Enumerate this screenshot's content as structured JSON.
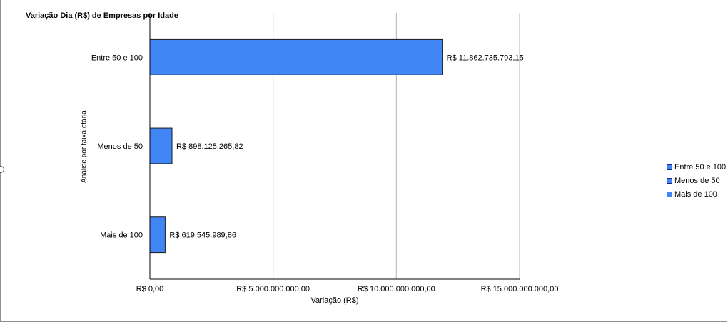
{
  "chart_data": {
    "type": "bar",
    "orientation": "horizontal",
    "title": "Variação Dia (R$) de Empresas por Idade",
    "xlabel": "Variação (R$)",
    "ylabel": "Análise por faixa etária",
    "categories": [
      "Entre 50 e 100",
      "Menos de 50",
      "Mais de 100"
    ],
    "values": [
      11862735793.15,
      898125265.82,
      619545989.86
    ],
    "data_labels": [
      "R$ 11.862.735.793,15",
      "R$ 898.125.265,82",
      "R$ 619.545.989,86"
    ],
    "xlim": [
      0,
      15000000000
    ],
    "x_ticks": [
      0,
      5000000000,
      10000000000,
      15000000000
    ],
    "x_tick_labels": [
      "R$ 0,00",
      "R$ 5.000.000.000,00",
      "R$ 10.000.000.000,00",
      "R$ 15.000.000.000,00"
    ],
    "grid": true,
    "legend": {
      "placement": "right",
      "entries": [
        "Entre 50 e 100",
        "Menos de 50",
        "Mais de 100"
      ]
    },
    "bar_color": "#4285f4",
    "bar_border_color": "#1a1a1a"
  }
}
